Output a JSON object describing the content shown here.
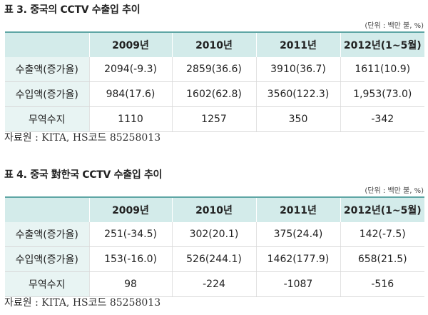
{
  "tables": [
    {
      "title": "표 3. 중국의 CCTV 수출입 추이",
      "unit": "(단위 : 백만 불, %)",
      "headers": [
        "",
        "2009년",
        "2010년",
        "2011년",
        "2012년(1~5월)"
      ],
      "rows": [
        [
          "수출액(증가율)",
          "2094(-9.3)",
          "2859(36.6)",
          "3910(36.7)",
          "1611(10.9)"
        ],
        [
          "수입액(증가율)",
          "984(17.6)",
          "1602(62.8)",
          "3560(122.3)",
          "1,953(73.0)"
        ],
        [
          "무역수지",
          "1110",
          "1257",
          "350",
          "-342"
        ]
      ],
      "source": "자료원 : KITA, HS코드 85258013"
    },
    {
      "title": "표 4. 중국 對한국 CCTV 수출입 추이",
      "unit": "(단위 : 백만 불, %)",
      "headers": [
        "",
        "2009년",
        "2010년",
        "2011년",
        "2012년(1~5월)"
      ],
      "rows": [
        [
          "수출액(증가율)",
          "251(-34.5)",
          "302(20.1)",
          "375(24.4)",
          "142(-7.5)"
        ],
        [
          "수입액(증가율)",
          "153(-16.0)",
          "526(244.1)",
          "1462(177.9)",
          "658(21.5)"
        ],
        [
          "무역수지",
          "98",
          "-224",
          "-1087",
          "-516"
        ]
      ],
      "source": "자료원 : KITA, HS코드 85258013"
    }
  ]
}
